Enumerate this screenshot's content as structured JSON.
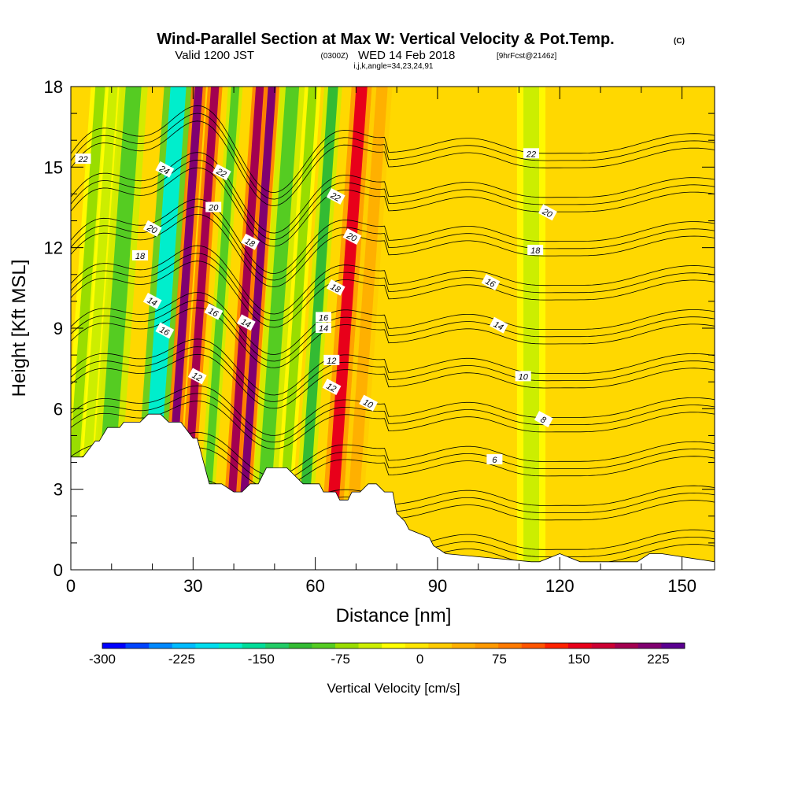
{
  "title": {
    "main": "Wind-Parallel Section at Max W: Vertical Velocity & Pot.Temp.",
    "copyright": "(C)",
    "valid_prefix": "Valid 1200 JST",
    "zulu": "(0300Z)",
    "valid_date": "WED 14 Feb 2018",
    "forecast": "[9hrFcst@2146z]",
    "params": "i,j,k,angle=34,23,24,91"
  },
  "chart_data": {
    "type": "heatmap",
    "xlabel": "Distance [nm]",
    "ylabel": "Height [Kft MSL]",
    "xlim": [
      0,
      158
    ],
    "ylim": [
      0,
      18
    ],
    "x_ticks": [
      "0",
      "30",
      "60",
      "90",
      "120",
      "150"
    ],
    "y_ticks": [
      "0",
      "3",
      "6",
      "9",
      "12",
      "15",
      "18"
    ],
    "colorbar": {
      "label": "Vertical Velocity [cm/s]",
      "range": [
        -300,
        250
      ],
      "tick_labels": [
        "-300",
        "-225",
        "-150",
        "-75",
        "0",
        "75",
        "150",
        "225"
      ],
      "colors": [
        "#0000ff",
        "#0044ff",
        "#0088ff",
        "#00bbff",
        "#00ddee",
        "#00eecc",
        "#00dd99",
        "#22cc66",
        "#33bb33",
        "#55cc22",
        "#99dd00",
        "#ccee00",
        "#ffff00",
        "#ffe600",
        "#ffcc00",
        "#ffb000",
        "#ff9900",
        "#ff7a00",
        "#ff5500",
        "#ff2200",
        "#e8001a",
        "#cc0033",
        "#a30050",
        "#800070",
        "#5a0090"
      ]
    },
    "velocity_bands": [
      {
        "x": 2,
        "w": 2.5,
        "value": -75
      },
      {
        "x": 5,
        "w": 2.0,
        "value": -40
      },
      {
        "x": 10,
        "w": 3.5,
        "value": -90
      },
      {
        "x": 21,
        "w": 3.5,
        "value": -190
      },
      {
        "x": 26,
        "w": 1.8,
        "value": 210
      },
      {
        "x": 30,
        "w": 1.8,
        "value": 200
      },
      {
        "x": 35,
        "w": 1.8,
        "value": -100
      },
      {
        "x": 41,
        "w": 1.8,
        "value": 200
      },
      {
        "x": 44,
        "w": 1.8,
        "value": 210
      },
      {
        "x": 49,
        "w": 3.0,
        "value": -100
      },
      {
        "x": 54,
        "w": 2.0,
        "value": -60
      },
      {
        "x": 59,
        "w": 2.2,
        "value": -110
      },
      {
        "x": 66,
        "w": 2.5,
        "value": 140
      },
      {
        "x": 71,
        "w": 2.5,
        "value": 40
      },
      {
        "x": 113,
        "w": 3.5,
        "value": -55
      }
    ],
    "potential_temperature": {
      "contour_values": [
        6,
        8,
        10,
        12,
        14,
        16,
        18,
        20,
        22,
        24
      ],
      "labels": [
        "22",
        "24",
        "22",
        "22",
        "22",
        "20",
        "20",
        "20",
        "20",
        "18",
        "18",
        "18",
        "18",
        "16",
        "16",
        "16",
        "16",
        "14",
        "14",
        "14",
        "14",
        "12",
        "12",
        "12",
        "10",
        "10",
        "8",
        "6"
      ]
    },
    "terrain_profile": {
      "x": [
        0,
        3,
        6,
        7,
        9,
        12,
        13,
        17,
        19,
        22,
        24,
        27,
        30,
        31,
        34,
        37,
        40,
        42,
        44,
        46,
        48,
        53,
        57,
        61,
        62,
        65,
        66,
        68,
        69,
        71,
        73,
        75,
        77,
        79,
        80,
        82,
        83,
        88,
        89,
        92,
        113,
        115,
        120,
        125,
        126,
        130,
        131,
        139,
        142,
        145,
        158
      ],
      "height": [
        4.2,
        4.2,
        4.8,
        4.8,
        5.3,
        5.3,
        5.5,
        5.5,
        5.8,
        5.8,
        5.5,
        5.5,
        4.9,
        4.9,
        3.2,
        3.2,
        2.9,
        2.9,
        3.2,
        3.2,
        3.8,
        3.8,
        3.2,
        3.2,
        2.9,
        2.9,
        2.6,
        2.6,
        2.9,
        2.9,
        3.2,
        3.2,
        2.9,
        2.9,
        2.1,
        1.8,
        1.5,
        1.2,
        0.9,
        0.6,
        0.3,
        0.3,
        0.6,
        0.3,
        0.3,
        0.3,
        0.3,
        0.3,
        0.6,
        0.6,
        0.3
      ]
    }
  }
}
